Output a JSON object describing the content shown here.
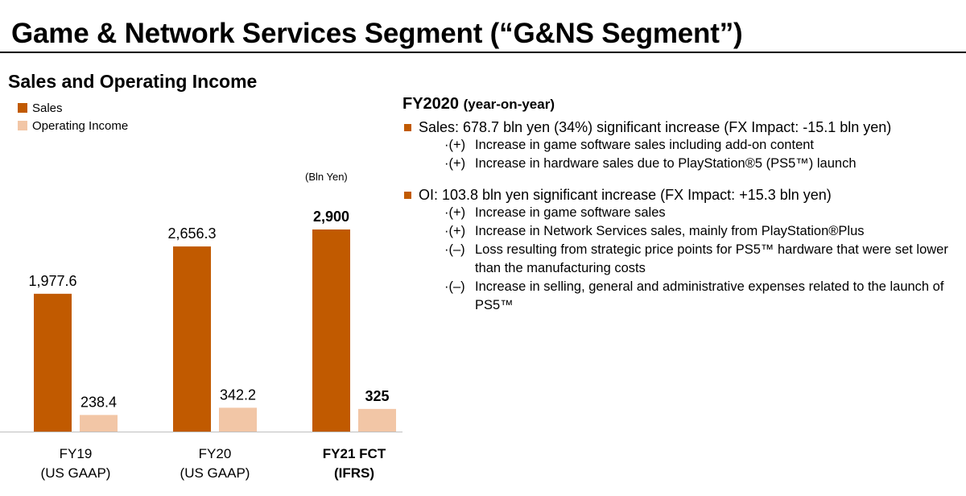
{
  "header": {
    "title": "Game & Network Services Segment (“G&NS Segment”)"
  },
  "left_panel": {
    "subtitle": "Sales and Operating Income",
    "legend": [
      {
        "label": "Sales",
        "color": "#c15a00"
      },
      {
        "label": "Operating Income",
        "color": "#f2c6a6"
      }
    ],
    "unit": "(Bln Yen)"
  },
  "chart_data": {
    "type": "bar",
    "categories": [
      "FY19\n(US GAAP)",
      "FY20\n(US GAAP)",
      "FY21 FCT\n(IFRS)"
    ],
    "series": [
      {
        "name": "Sales",
        "values": [
          1977.6,
          2656.3,
          2900
        ],
        "labels": [
          "1,977.6",
          "2,656.3",
          "2,900"
        ],
        "color": "#c15a00"
      },
      {
        "name": "Operating Income",
        "values": [
          238.4,
          342.2,
          325
        ],
        "labels": [
          "238.4",
          "342.2",
          "325"
        ],
        "color": "#f2c6a6"
      }
    ],
    "bold_categories": [
      false,
      false,
      true
    ],
    "ylim": [
      0,
      3600
    ],
    "grid": false
  },
  "right_panel": {
    "heading": "FY2020",
    "heading_suffix": "(year-on-year)",
    "bullets": [
      {
        "text": "Sales: 678.7 bln yen (34%) significant increase (FX Impact: -15.1 bln yen)",
        "subs": [
          {
            "marker": "·(+)",
            "text": "Increase in game software sales including add-on content"
          },
          {
            "marker": "·(+)",
            "text": "Increase in hardware sales due to PlayStation®5 (PS5™) launch"
          }
        ]
      },
      {
        "text": "OI: 103.8 bln yen significant increase (FX Impact: +15.3 bln yen)",
        "subs": [
          {
            "marker": "·(+)",
            "text": "Increase in game software sales"
          },
          {
            "marker": "·(+)",
            "text": "Increase in Network Services sales, mainly from PlayStation®Plus"
          },
          {
            "marker": "·(–)",
            "text": "Loss resulting from strategic price points for PS5™ hardware that were set lower than the manufacturing costs"
          },
          {
            "marker": "·(–)",
            "text": "Increase in selling, general and administrative expenses related to the launch of PS5™"
          }
        ]
      }
    ]
  }
}
